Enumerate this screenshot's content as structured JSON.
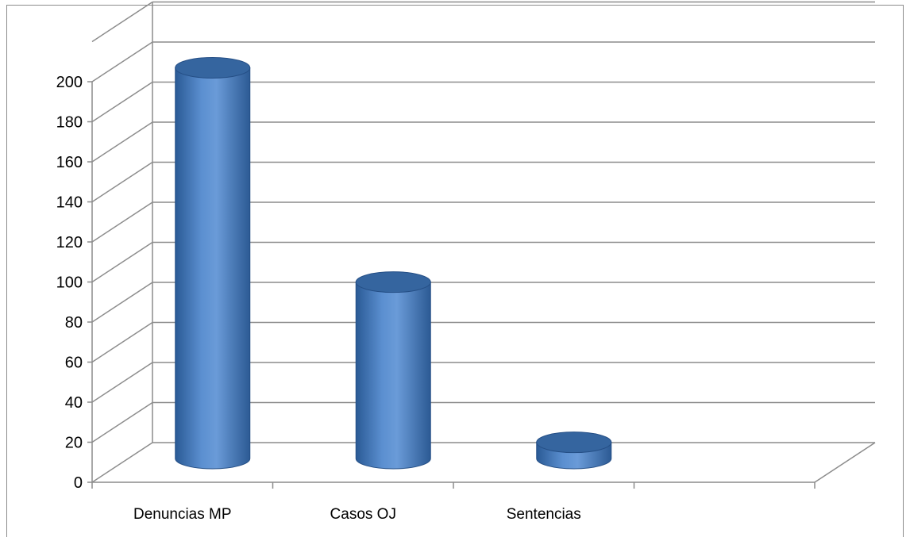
{
  "chart_data": {
    "type": "bar",
    "style": "3d-cylinder",
    "categories": [
      "Denuncias MP",
      "Casos OJ",
      "Sentencias",
      ""
    ],
    "series": [
      {
        "values": [
          201,
          94,
          14,
          null
        ]
      }
    ],
    "ylim": [
      0,
      200
    ],
    "yticks": [
      0,
      20,
      40,
      60,
      80,
      100,
      120,
      140,
      160,
      180,
      200
    ],
    "grid": true,
    "legend": "none",
    "colors": {
      "bar": "#4a7ebf",
      "bar_dark": "#254f86",
      "bar_light": "#8db3e2",
      "grid": "#8c8c8c"
    }
  }
}
